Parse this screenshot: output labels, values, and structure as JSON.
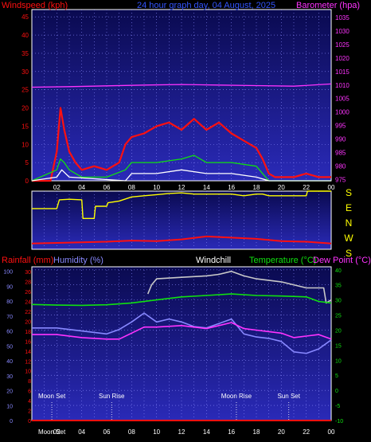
{
  "colors": {
    "background": "#000000",
    "plot_top": "#0a0a50",
    "plot_bottom": "#2a2ab8",
    "grid": "#8a8aff",
    "border": "#ffffff",
    "red": "#ff1010",
    "green": "#10e010",
    "yellow": "#ffff00",
    "white": "#ffffff",
    "magenta": "#ff33ff",
    "blue": "#3355ff",
    "lavender": "#8888ff",
    "grey": "#c8c8c8"
  },
  "header": {
    "windspeed": "Windspeed (kph)",
    "title": "24 hour graph day, 04 August, 2025",
    "barometer": "Barometer (hpa)"
  },
  "footer": {
    "rainfall": "Rainfall (mm)",
    "humidity": "Humidity (%)",
    "windchill": "Windchill",
    "temperature": "Temperature (°C)",
    "dewpoint": "Dew Point (°C)"
  },
  "x_labels": [
    "02",
    "04",
    "06",
    "08",
    "10",
    "12",
    "14",
    "16",
    "18",
    "20",
    "22",
    "00"
  ],
  "direction_labels": [
    "E",
    "N",
    "W",
    "S"
  ],
  "events_top": [
    {
      "label": "Moon Set",
      "hour": 1.6
    },
    {
      "label": "Sun Rise",
      "hour": 6.4
    },
    {
      "label": "Moon Rise",
      "hour": 16.4
    },
    {
      "label": "Sun Set",
      "hour": 20.6
    }
  ],
  "events_bottom": [
    {
      "label": "Moon Set",
      "hour": 1.6
    }
  ],
  "chart_data": [
    {
      "type": "line",
      "name": "wind",
      "left_axis": {
        "label": "Windspeed (kph)",
        "ticks": [
          0,
          5,
          10,
          15,
          20,
          25,
          30,
          35,
          40,
          45
        ],
        "ylim": [
          0,
          47
        ]
      },
      "right_axis": {
        "label": "Barometer (hpa)",
        "ticks": [
          975,
          980,
          985,
          990,
          995,
          1000,
          1005,
          1010,
          1015,
          1020,
          1025,
          1030,
          1035
        ],
        "ylim": [
          974.5,
          1038
        ]
      },
      "series": [
        {
          "name": "Barometer (hpa)",
          "axis": "right",
          "color": "magenta",
          "x": [
            0,
            3,
            6,
            9,
            12,
            15,
            18,
            21,
            24
          ],
          "y": [
            1009.2,
            1009.4,
            1009.7,
            1010.0,
            1010.2,
            1010.0,
            1009.8,
            1009.6,
            1010.4
          ]
        },
        {
          "name": "gust",
          "color": "red",
          "x": [
            0,
            1.5,
            2.0,
            2.3,
            2.6,
            3.0,
            3.5,
            4.0,
            5.0,
            6.0,
            7.0,
            7.5,
            8.0,
            9.0,
            10.0,
            11.0,
            12.0,
            13.0,
            14.0,
            15.0,
            16.0,
            17.0,
            18.0,
            18.5,
            19.0,
            19.5,
            21.0,
            22.0,
            23.0,
            24.0
          ],
          "y": [
            0,
            0,
            8,
            20,
            14,
            8,
            5,
            3,
            4,
            3,
            5,
            10,
            12,
            13,
            15,
            16,
            14,
            17,
            14,
            16,
            13,
            11,
            9,
            6,
            2,
            1,
            1,
            2,
            1,
            1
          ]
        },
        {
          "name": "average",
          "color": "green",
          "x": [
            0,
            2.0,
            2.3,
            2.6,
            3.0,
            4.0,
            6.0,
            7.5,
            8.0,
            10.0,
            12.0,
            13.0,
            14.0,
            16.0,
            18.0,
            18.5,
            19.0,
            24.0
          ],
          "y": [
            0,
            3,
            6,
            5,
            3,
            1,
            1,
            3,
            5,
            5,
            6,
            7,
            5,
            5,
            4,
            2,
            0,
            0
          ]
        },
        {
          "name": "lull",
          "color": "white",
          "x": [
            0,
            2.0,
            2.4,
            3.0,
            7.5,
            8.0,
            10.0,
            12.0,
            14.0,
            16.0,
            18.0,
            19.0,
            24.0
          ],
          "y": [
            0,
            1,
            3,
            1,
            0,
            2,
            2,
            3,
            2,
            2,
            1,
            0,
            0
          ]
        }
      ]
    },
    {
      "type": "line",
      "name": "wind_direction",
      "right_axis": {
        "labels": [
          "E",
          "N",
          "W",
          "S"
        ]
      },
      "series": [
        {
          "name": "direction",
          "color": "yellow",
          "x": [
            0,
            2.0,
            2.2,
            3.0,
            4.0,
            4.1,
            5.0,
            5.1,
            6.0,
            6.1,
            7.0,
            8.0,
            9.0,
            10.0,
            11.0,
            12.0,
            13.0,
            14.0,
            15.0,
            16.0,
            17.0,
            18.0,
            18.5,
            19.0,
            22.0,
            22.1,
            24.0
          ],
          "y": [
            0.7,
            0.7,
            0.85,
            0.86,
            0.85,
            0.53,
            0.53,
            0.74,
            0.74,
            0.8,
            0.83,
            0.9,
            0.92,
            0.94,
            0.96,
            0.97,
            0.95,
            0.95,
            0.95,
            0.95,
            0.92,
            0.95,
            0.95,
            0.92,
            0.92,
            1.0,
            1.0
          ]
        },
        {
          "name": "strength",
          "color": "red",
          "x": [
            0,
            2.0,
            4.0,
            6.0,
            8.0,
            10.0,
            12.0,
            14.0,
            16.0,
            18.0,
            20.0,
            22.0,
            24.0
          ],
          "y": [
            0.1,
            0.11,
            0.12,
            0.13,
            0.15,
            0.14,
            0.17,
            0.22,
            0.2,
            0.18,
            0.14,
            0.13,
            0.1
          ]
        }
      ]
    },
    {
      "type": "line",
      "name": "temperature",
      "axes": {
        "rainfall": {
          "label": "Rainfall (mm)",
          "ticks": [
            0,
            2,
            4,
            6,
            8,
            10,
            12,
            14,
            16,
            18,
            20,
            22,
            24,
            26,
            28,
            30
          ],
          "ylim": [
            0,
            31
          ]
        },
        "humidity": {
          "label": "Humidity (%)",
          "ticks": [
            0,
            10,
            20,
            30,
            40,
            50,
            60,
            70,
            80,
            90,
            100
          ],
          "ylim": [
            0,
            103
          ]
        },
        "temperature": {
          "label": "Temperature (°C)",
          "ticks": [
            -10,
            -5,
            0,
            5,
            10,
            15,
            20,
            25,
            30,
            35,
            40
          ],
          "ylim": [
            -10,
            41
          ]
        }
      },
      "series": [
        {
          "name": "Windchill",
          "axis": "temperature",
          "color": "grey",
          "x": [
            9.3,
            9.6,
            10.0,
            12.0,
            14.0,
            15.0,
            16.0,
            17.0,
            18.0,
            20.0,
            22.0,
            23.4,
            23.6,
            24.0
          ],
          "y": [
            32,
            35,
            37,
            37.5,
            38,
            38.5,
            39.5,
            38,
            37,
            36,
            34,
            34,
            29,
            30
          ]
        },
        {
          "name": "Temperature (°C)",
          "axis": "temperature",
          "color": "green",
          "x": [
            0,
            2.0,
            4.0,
            6.0,
            8.0,
            10.0,
            12.0,
            14.0,
            16.0,
            18.0,
            20.0,
            22.0,
            23.0,
            24.0
          ],
          "y": [
            28.5,
            28.3,
            28.2,
            28.4,
            29.0,
            30.0,
            31.0,
            31.5,
            32.0,
            31.5,
            31.3,
            31.0,
            29.5,
            29.0
          ]
        },
        {
          "name": "Humidity (%)",
          "axis": "humidity",
          "color": "lavender",
          "x": [
            0,
            2.0,
            4.0,
            6.0,
            7.0,
            8.0,
            9.0,
            10.0,
            11.0,
            12.0,
            13.0,
            14.0,
            15.0,
            16.0,
            17.0,
            18.0,
            19.0,
            20.0,
            21.0,
            22.0,
            23.0,
            24.0
          ],
          "y": [
            62,
            62,
            60,
            58,
            61,
            66,
            72,
            66,
            68,
            66,
            63,
            62,
            65,
            68,
            58,
            56,
            55,
            53,
            46,
            45,
            48,
            54
          ]
        },
        {
          "name": "Dew Point (°C)",
          "axis": "temperature",
          "color": "magenta",
          "x": [
            0,
            2.0,
            4.0,
            6.0,
            7.0,
            8.0,
            9.0,
            10.0,
            12.0,
            14.0,
            15.0,
            16.0,
            17.0,
            18.0,
            19.0,
            20.0,
            21.0,
            22.0,
            23.0,
            24.0
          ],
          "y": [
            18.5,
            18.5,
            17.5,
            17.0,
            17.0,
            19.0,
            21.0,
            21.0,
            21.5,
            20.5,
            21.5,
            22.5,
            20.5,
            20.0,
            19.5,
            19.0,
            17.5,
            18.0,
            18.5,
            17.0
          ]
        },
        {
          "name": "Rainfall (mm)",
          "axis": "rainfall",
          "color": "red",
          "x": [
            0,
            24
          ],
          "y": [
            0,
            0
          ]
        }
      ]
    }
  ]
}
